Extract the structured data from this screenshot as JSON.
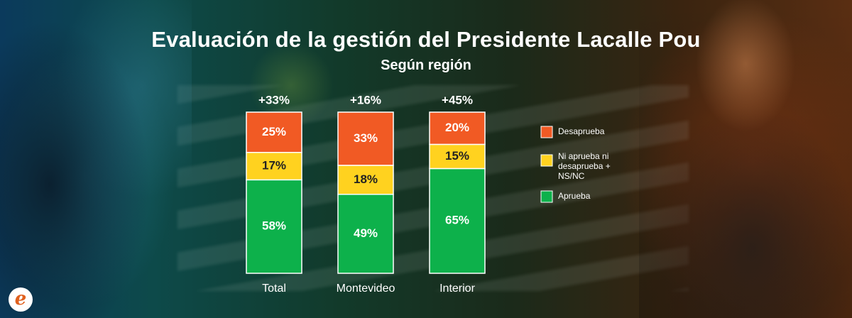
{
  "title": "Evaluación de la gestión del Presidente Lacalle Pou",
  "subtitle": "Según región",
  "logo_letter": "e",
  "chart_data": {
    "type": "bar",
    "stacked": true,
    "categories": [
      "Total",
      "Montevideo",
      "Interior"
    ],
    "net_labels": [
      "+33%",
      "+16%",
      "+45%"
    ],
    "series": [
      {
        "name": "Aprueba",
        "values": [
          58,
          49,
          65
        ],
        "color": "#0db14b"
      },
      {
        "name": "Ni aprueba ni desaprueba + NS/NC",
        "values": [
          17,
          18,
          15
        ],
        "color": "#ffd21f"
      },
      {
        "name": "Desaprueba",
        "values": [
          25,
          33,
          20
        ],
        "color": "#f15a24"
      }
    ],
    "value_suffix": "%",
    "legend": {
      "placement": "right",
      "items": [
        {
          "label": "Desaprueba",
          "color": "#f15a24"
        },
        {
          "label": "Ni aprueba ni desaprueba + NS/NC",
          "color": "#ffd21f"
        },
        {
          "label": "Aprueba",
          "color": "#0db14b"
        }
      ]
    },
    "ylim": [
      0,
      100
    ],
    "grid": false
  }
}
